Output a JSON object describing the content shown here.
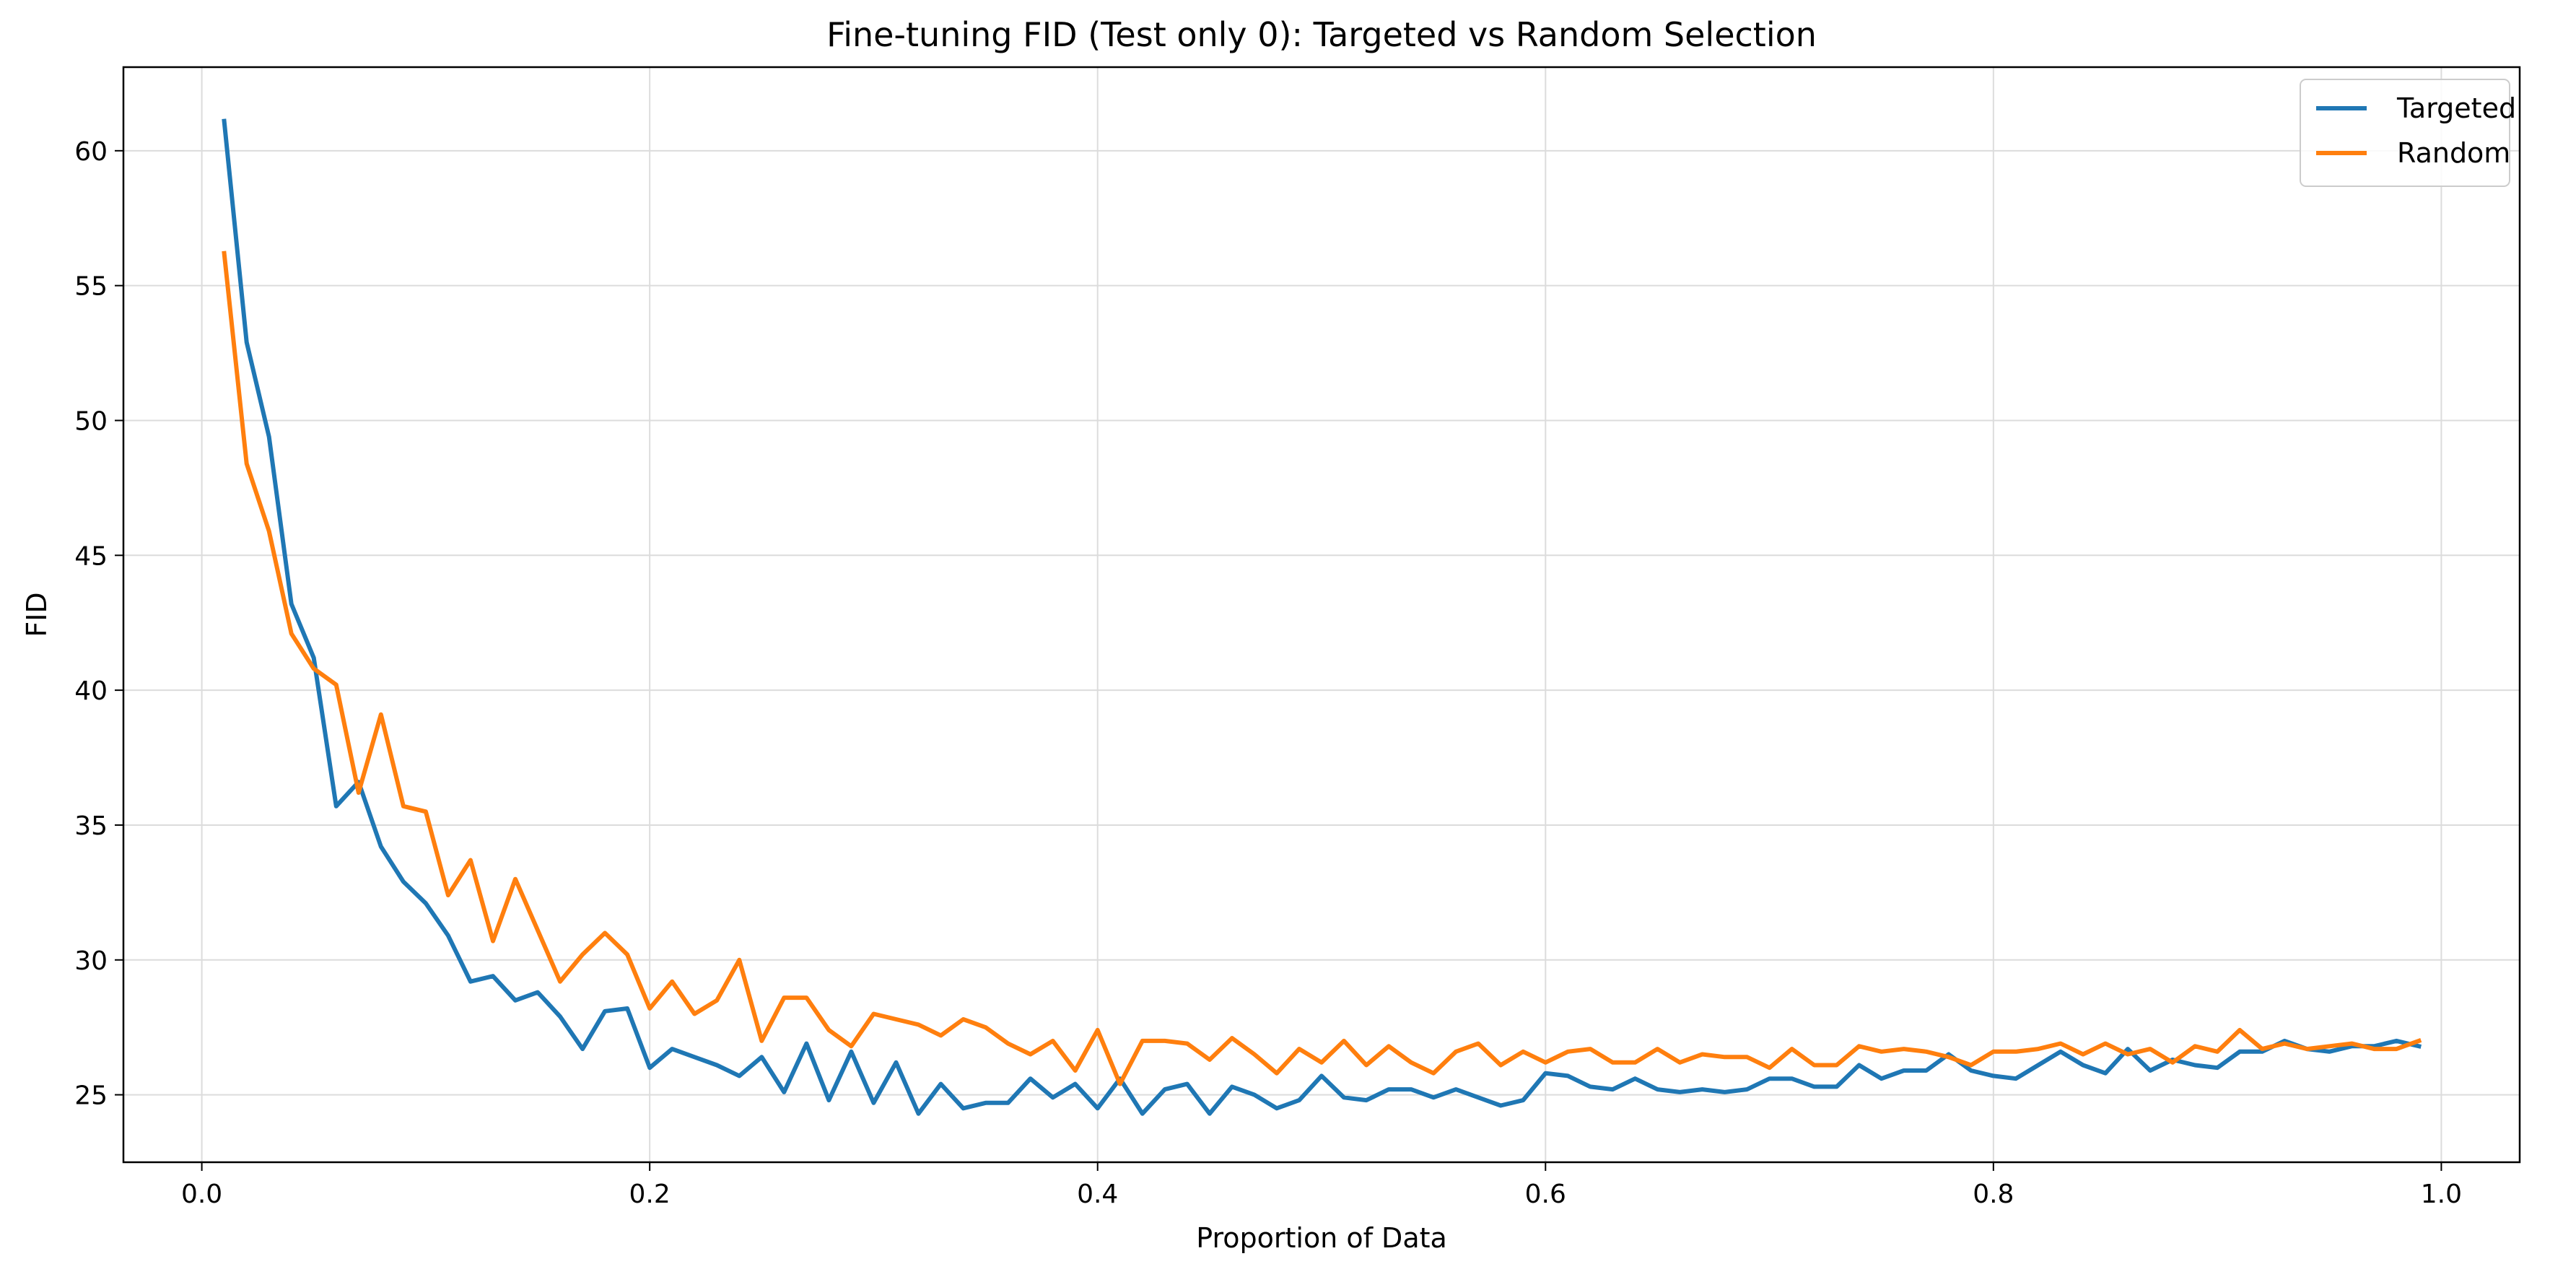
{
  "chart_data": {
    "type": "line",
    "title": "Fine-tuning FID (Test only 0): Targeted vs Random Selection",
    "xlabel": "Proportion of Data",
    "ylabel": "FID",
    "xlim": [
      -0.035,
      1.035
    ],
    "ylim": [
      22.5,
      63.1
    ],
    "xticks": [
      0.0,
      0.2,
      0.4,
      0.6,
      0.8,
      1.0
    ],
    "xtick_labels": [
      "0.0",
      "0.2",
      "0.4",
      "0.6",
      "0.8",
      "1.0"
    ],
    "yticks": [
      25,
      30,
      35,
      40,
      45,
      50,
      55,
      60
    ],
    "ytick_labels": [
      "25",
      "30",
      "35",
      "40",
      "45",
      "50",
      "55",
      "60"
    ],
    "grid": true,
    "legend_position": "top-right",
    "x": [
      0.01,
      0.02,
      0.03,
      0.04,
      0.05,
      0.06,
      0.07,
      0.08,
      0.09,
      0.1,
      0.11,
      0.12,
      0.13,
      0.14,
      0.15,
      0.16,
      0.17,
      0.18,
      0.19,
      0.2,
      0.21,
      0.22,
      0.23,
      0.24,
      0.25,
      0.26,
      0.27,
      0.28,
      0.29,
      0.3,
      0.31,
      0.32,
      0.33,
      0.34,
      0.35,
      0.36,
      0.37,
      0.38,
      0.39,
      0.4,
      0.41,
      0.42,
      0.43,
      0.44,
      0.45,
      0.46,
      0.47,
      0.48,
      0.49,
      0.5,
      0.51,
      0.52,
      0.53,
      0.54,
      0.55,
      0.56,
      0.57,
      0.58,
      0.59,
      0.6,
      0.61,
      0.62,
      0.63,
      0.64,
      0.65,
      0.66,
      0.67,
      0.68,
      0.69,
      0.7,
      0.71,
      0.72,
      0.73,
      0.74,
      0.75,
      0.76,
      0.77,
      0.78,
      0.79,
      0.8,
      0.81,
      0.82,
      0.83,
      0.84,
      0.85,
      0.86,
      0.87,
      0.88,
      0.89,
      0.9,
      0.91,
      0.92,
      0.93,
      0.94,
      0.95,
      0.96,
      0.97,
      0.98,
      0.99
    ],
    "series": [
      {
        "name": "Targeted",
        "color": "#1f77b4",
        "values": [
          61.1,
          52.9,
          49.4,
          43.2,
          41.2,
          35.7,
          36.6,
          34.2,
          32.9,
          32.1,
          30.9,
          29.2,
          29.4,
          28.5,
          28.8,
          27.9,
          26.7,
          28.1,
          28.2,
          26.0,
          26.7,
          26.4,
          26.1,
          25.7,
          26.4,
          25.1,
          26.9,
          24.8,
          26.6,
          24.7,
          26.2,
          24.3,
          25.4,
          24.5,
          24.7,
          24.7,
          25.6,
          24.9,
          25.4,
          24.5,
          25.6,
          24.3,
          25.2,
          25.4,
          24.3,
          25.3,
          25.0,
          24.5,
          24.8,
          25.7,
          24.9,
          24.8,
          25.2,
          25.2,
          24.9,
          25.2,
          24.9,
          24.6,
          24.8,
          25.8,
          25.7,
          25.3,
          25.2,
          25.6,
          25.2,
          25.1,
          25.2,
          25.1,
          25.2,
          25.6,
          25.6,
          25.3,
          25.3,
          26.1,
          25.6,
          25.9,
          25.9,
          26.5,
          25.9,
          25.7,
          25.6,
          26.1,
          26.6,
          26.1,
          25.8,
          26.7,
          25.9,
          26.3,
          26.1,
          26.0,
          26.6,
          26.6,
          27.0,
          26.7,
          26.6,
          26.8,
          26.8,
          27.0,
          26.8
        ]
      },
      {
        "name": "Random",
        "color": "#ff7f0e",
        "values": [
          56.2,
          48.4,
          45.9,
          42.1,
          40.8,
          40.2,
          36.2,
          39.1,
          35.7,
          35.5,
          32.4,
          33.7,
          30.7,
          33.0,
          31.1,
          29.2,
          30.2,
          31.0,
          30.2,
          28.2,
          29.2,
          28.0,
          28.5,
          30.0,
          27.0,
          28.6,
          28.6,
          27.4,
          26.8,
          28.0,
          27.8,
          27.6,
          27.2,
          27.8,
          27.5,
          26.9,
          26.5,
          27.0,
          25.9,
          27.4,
          25.4,
          27.0,
          27.0,
          26.9,
          26.3,
          27.1,
          26.5,
          25.8,
          26.7,
          26.2,
          27.0,
          26.1,
          26.8,
          26.2,
          25.8,
          26.6,
          26.9,
          26.1,
          26.6,
          26.2,
          26.6,
          26.7,
          26.2,
          26.2,
          26.7,
          26.2,
          26.5,
          26.4,
          26.4,
          26.0,
          26.7,
          26.1,
          26.1,
          26.8,
          26.6,
          26.7,
          26.6,
          26.4,
          26.1,
          26.6,
          26.6,
          26.7,
          26.9,
          26.5,
          26.9,
          26.5,
          26.7,
          26.2,
          26.8,
          26.6,
          27.4,
          26.7,
          26.9,
          26.7,
          26.8,
          26.9,
          26.7,
          26.7,
          27.0
        ]
      }
    ]
  }
}
